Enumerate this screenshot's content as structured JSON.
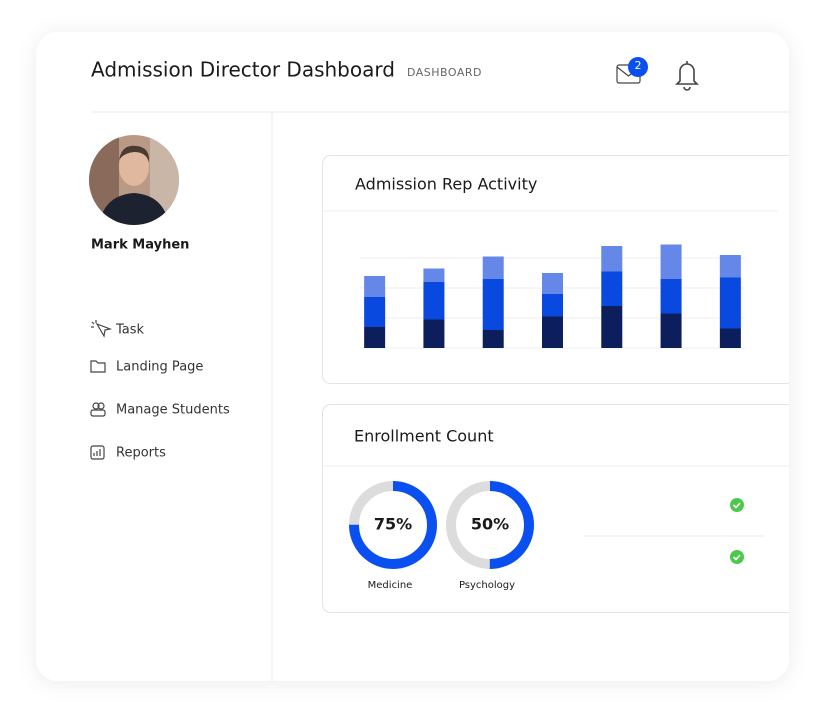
{
  "header": {
    "title": "Admission Director Dashboard",
    "breadcrumb": "DASHBOARD",
    "mail_badge": "2"
  },
  "sidebar": {
    "user_name": "Mark Mayhen",
    "nav": [
      "Task",
      "Landing Page",
      "Manage Students",
      "Reports"
    ]
  },
  "chart_data": [
    {
      "type": "stacked-bar",
      "title": "Admission Rep Activity",
      "categories": [
        null,
        null,
        null,
        null,
        null,
        null,
        null
      ],
      "series": [
        {
          "color": "#0c1f5c",
          "values": [
            7,
            9.5,
            6,
            10.5,
            14,
            11.5,
            6.5
          ]
        },
        {
          "color": "#0a49e0",
          "values": [
            10,
            12.5,
            17,
            7.5,
            11.5,
            11.5,
            17
          ]
        },
        {
          "color": "#6487e8",
          "values": [
            7,
            4.5,
            7.5,
            7,
            8.5,
            11.5,
            7.5
          ]
        }
      ],
      "ylim": [
        0,
        35
      ],
      "yticks": [
        0,
        10,
        20,
        30
      ],
      "grid": true
    },
    {
      "type": "donut",
      "title": "Enrollment Count",
      "categories": [
        "Medicine",
        "Psychology"
      ],
      "values": [
        75,
        50
      ],
      "value_labels": [
        "75%",
        "50%"
      ],
      "max": 100,
      "color": "#0a4ff0",
      "track_color": "#dcdcdc"
    }
  ]
}
